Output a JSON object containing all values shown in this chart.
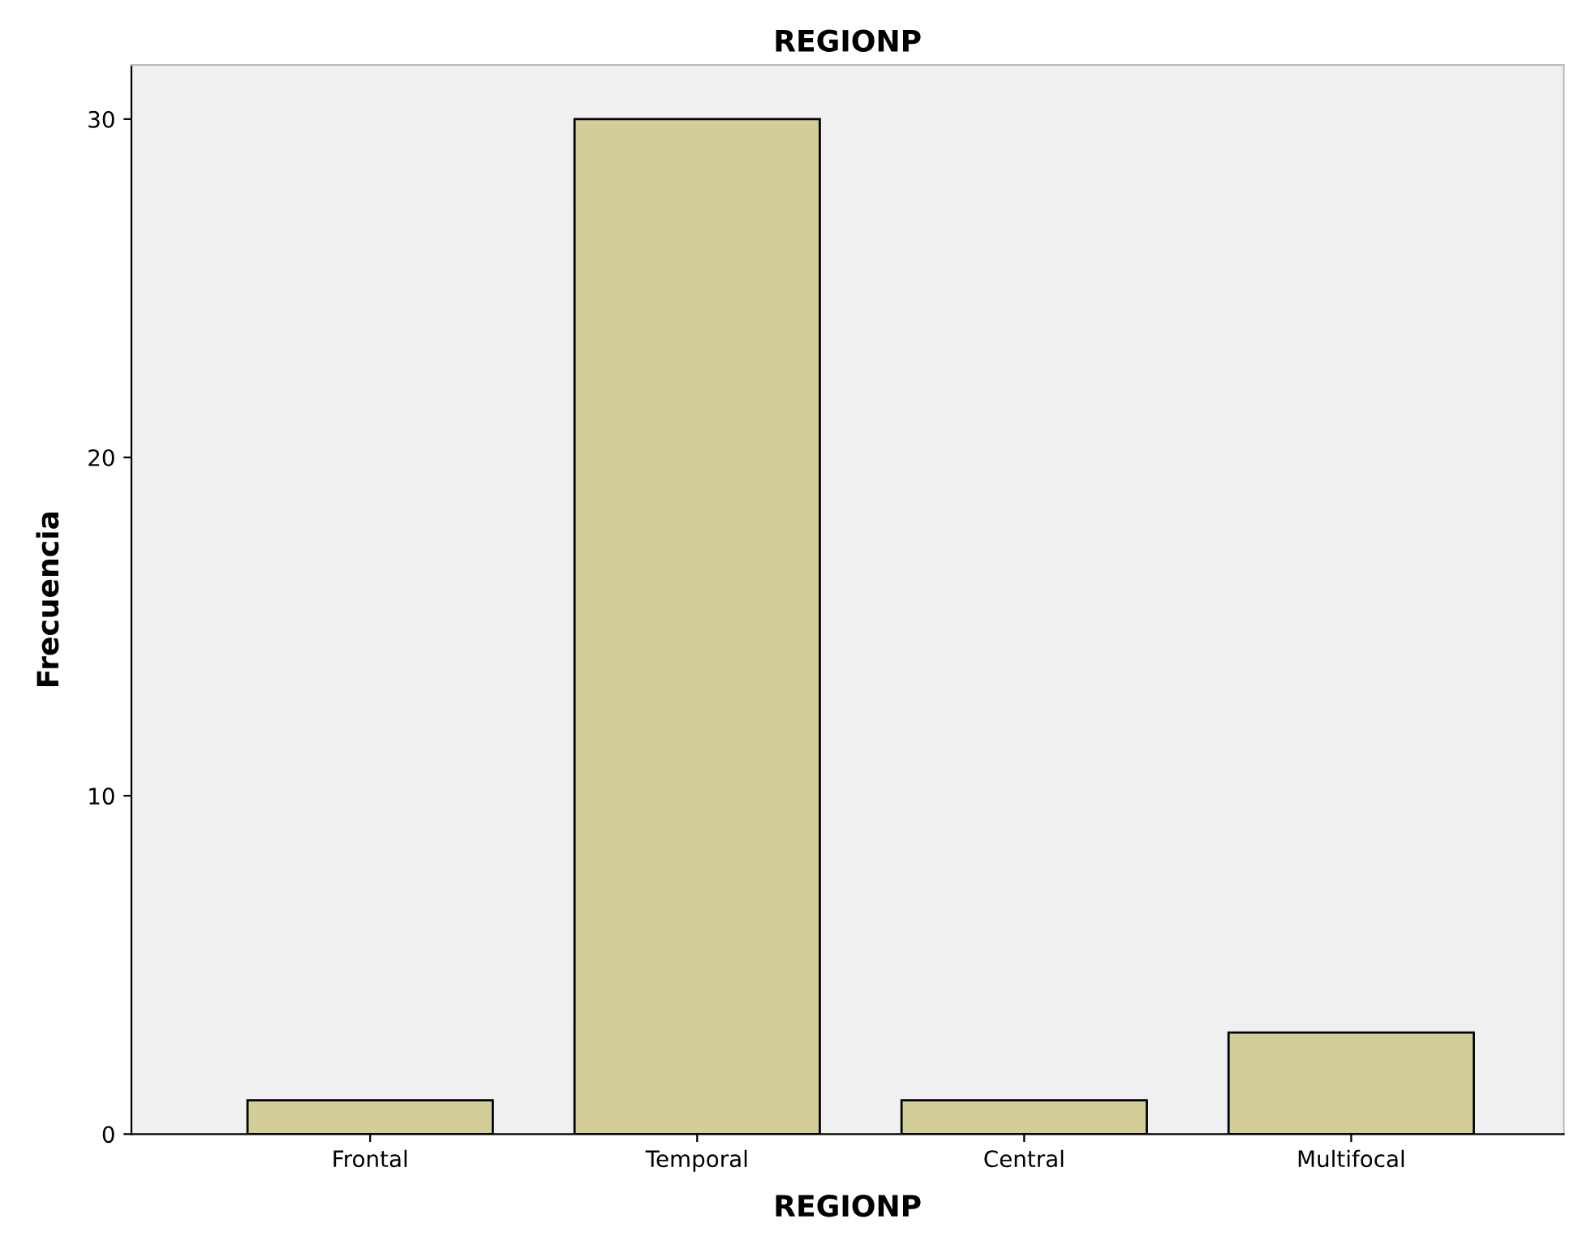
{
  "chart_data": {
    "type": "bar",
    "title": "REGIONP",
    "xlabel": "REGIONP",
    "ylabel": "Frecuencia",
    "categories": [
      "Frontal",
      "Temporal",
      "Central",
      "Multifocal"
    ],
    "values": [
      1,
      30,
      1,
      3
    ],
    "color": "#d3ce97",
    "ylim": [
      0,
      31.6
    ],
    "yticks": [
      0,
      10,
      20,
      30
    ],
    "grid": false,
    "legend": false
  }
}
